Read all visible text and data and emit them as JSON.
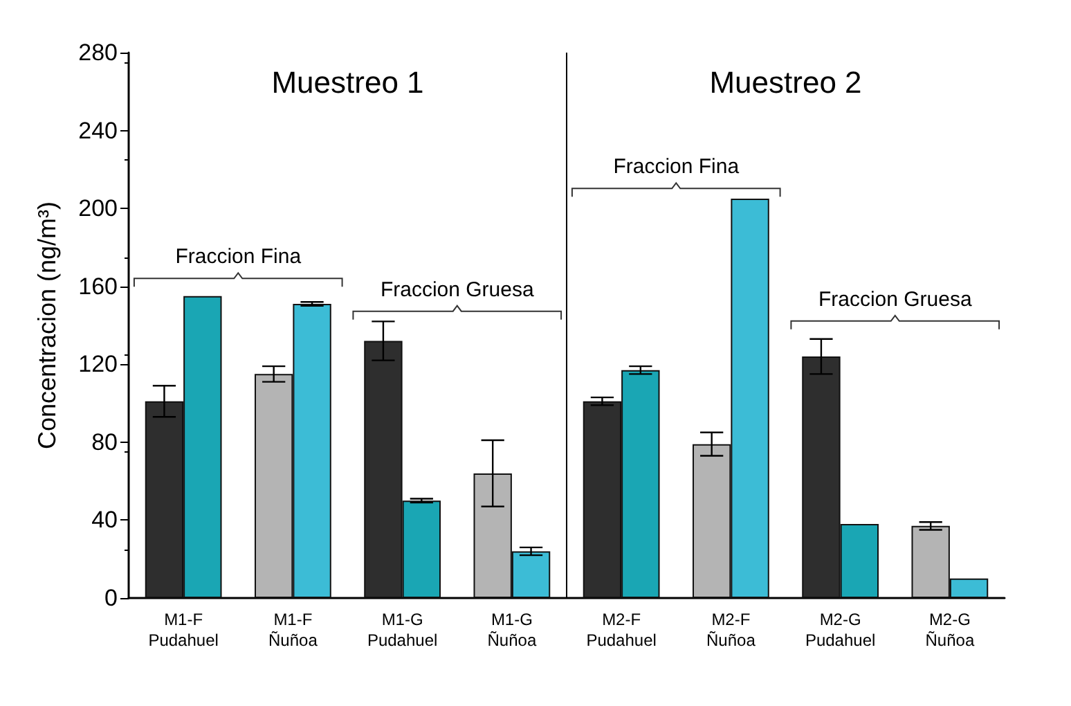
{
  "chart_data": {
    "type": "bar",
    "ylabel": "Concentracion (ng/m³)",
    "categories": [
      "M1-F\nPudahuel",
      "M1-F\nÑuñoa",
      "M1-G\nPudahuel",
      "M1-G\nÑuñoa",
      "M2-F\nPudahuel",
      "M2-F\nÑuñoa",
      "M2-G\nPudahuel",
      "M2-G\nÑuñoa"
    ],
    "series": [
      {
        "colors": [
          "#2e2e2e",
          "#b4b4b4",
          "#2e2e2e",
          "#b4b4b4",
          "#2e2e2e",
          "#b4b4b4",
          "#2e2e2e",
          "#b4b4b4"
        ],
        "values": [
          101,
          115,
          132,
          64,
          101,
          79,
          124,
          37
        ],
        "errors": [
          8,
          4,
          10,
          17,
          2,
          6,
          9,
          2
        ]
      },
      {
        "colors": [
          "#1aa6b4",
          "#3cbcd6",
          "#1aa6b4",
          "#3cbcd6",
          "#1aa6b4",
          "#3cbcd6",
          "#1aa6b4",
          "#3cbcd6"
        ],
        "values": [
          155,
          151,
          50,
          24,
          117,
          205,
          38,
          10
        ],
        "errors": [
          null,
          1,
          1,
          2,
          2,
          null,
          null,
          null
        ]
      }
    ],
    "ylim": [
      0,
      280
    ],
    "yticks": [
      0,
      40,
      80,
      120,
      160,
      200,
      240,
      280
    ],
    "grid": false,
    "annotations": [
      "Muestreo 1",
      "Muestreo 2",
      "Fraccion Fina",
      "Fraccion Gruesa",
      "Fraccion Fina",
      "Fraccion Gruesa"
    ]
  }
}
